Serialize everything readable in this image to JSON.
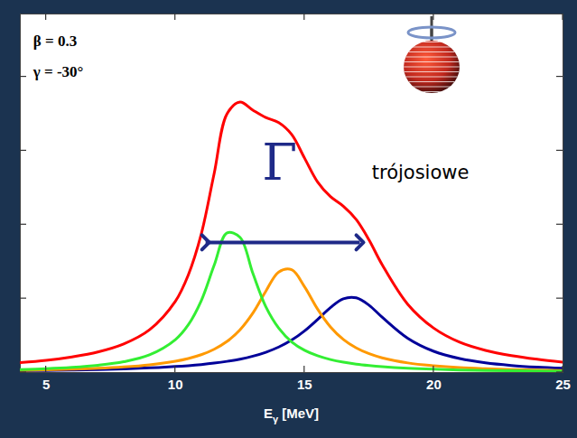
{
  "chart_data": {
    "type": "line",
    "x": [
      4,
      5,
      6,
      7,
      8,
      9,
      10,
      10.5,
      11,
      11.5,
      12,
      12.5,
      13,
      13.5,
      14,
      14.5,
      15,
      15.5,
      16,
      16.5,
      17,
      17.5,
      18,
      19,
      20,
      21,
      22,
      23,
      24,
      25
    ],
    "series": [
      {
        "color": "#000099",
        "values": [
          0.024,
          0.028,
          0.034,
          0.041,
          0.05,
          0.063,
          0.081,
          0.093,
          0.108,
          0.127,
          0.151,
          0.181,
          0.221,
          0.274,
          0.345,
          0.439,
          0.564,
          0.717,
          0.879,
          0.998,
          1.01,
          0.909,
          0.75,
          0.462,
          0.287,
          0.189,
          0.131,
          0.096,
          0.073,
          0.057
        ]
      },
      {
        "color": "#ff9900",
        "values": [
          0.029,
          0.036,
          0.045,
          0.057,
          0.076,
          0.105,
          0.153,
          0.19,
          0.241,
          0.315,
          0.421,
          0.578,
          0.805,
          1.1,
          1.36,
          1.39,
          1.16,
          0.86,
          0.618,
          0.448,
          0.333,
          0.254,
          0.199,
          0.13,
          0.092,
          0.067,
          0.052,
          0.041,
          0.033,
          0.027
        ]
      },
      {
        "color": "#33ee33",
        "values": [
          0.041,
          0.052,
          0.07,
          0.098,
          0.146,
          0.239,
          0.445,
          0.645,
          0.97,
          1.45,
          1.89,
          1.83,
          1.34,
          0.89,
          0.6,
          0.415,
          0.301,
          0.227,
          0.176,
          0.14,
          0.114,
          0.095,
          0.08,
          0.059,
          0.045,
          0.035,
          0.029,
          0.024,
          0.02,
          0.017
        ]
      },
      {
        "color": "#ff0000",
        "values": [
          0.134,
          0.165,
          0.212,
          0.278,
          0.386,
          0.578,
          0.964,
          1.32,
          1.87,
          2.69,
          3.5,
          3.66,
          3.55,
          3.45,
          3.38,
          3.22,
          2.9,
          2.58,
          2.38,
          2.25,
          2.07,
          1.79,
          1.46,
          0.92,
          0.6,
          0.41,
          0.3,
          0.23,
          0.18,
          0.14
        ]
      }
    ],
    "xlabel": "Eγ [MeV]",
    "xlim": [
      4,
      25
    ],
    "xticks": [
      5,
      10,
      15,
      20,
      25
    ],
    "ylim": [
      0,
      4.85
    ],
    "yticks": [
      0,
      1,
      2,
      3,
      4
    ],
    "tick_labels": "x",
    "annotations": [
      {
        "text": "β = 0.3",
        "x": 4.5,
        "y": 4.48
      },
      {
        "text": "γ = -30°",
        "x": 4.5,
        "y": 4.07
      },
      {
        "text": "Γ",
        "x": 14.03,
        "y": 2.83,
        "arrow": {
          "x1": 11.17,
          "x2": 17.14,
          "y": 1.76
        }
      },
      {
        "text": "trójosiowe",
        "x": 17.6,
        "y": 2.7
      }
    ]
  }
}
